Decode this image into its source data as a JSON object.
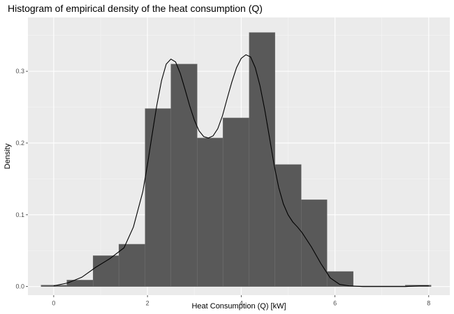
{
  "chart_data": {
    "type": "histogram",
    "title": "Histogram of empirical density of the heat consumption (Q)",
    "xlabel": "Heat Consumption (Q) [kW]",
    "ylabel": "Density",
    "xlim": [
      -0.55,
      8.45
    ],
    "ylim": [
      -0.012,
      0.375
    ],
    "x_ticks": [
      0,
      2,
      4,
      6,
      8
    ],
    "y_ticks": [
      0.0,
      0.1,
      0.2,
      0.3
    ],
    "y_tick_labels": [
      "0.0",
      "0.1",
      "0.2",
      "0.3"
    ],
    "grid": true,
    "bins": [
      {
        "x0": -0.27,
        "x1": 0.28,
        "density": 0.002
      },
      {
        "x0": 0.28,
        "x1": 0.84,
        "density": 0.009
      },
      {
        "x0": 0.84,
        "x1": 1.39,
        "density": 0.043
      },
      {
        "x0": 1.39,
        "x1": 1.95,
        "density": 0.059
      },
      {
        "x0": 1.95,
        "x1": 2.5,
        "density": 0.248
      },
      {
        "x0": 2.5,
        "x1": 3.06,
        "density": 0.31
      },
      {
        "x0": 3.06,
        "x1": 3.61,
        "density": 0.207
      },
      {
        "x0": 3.61,
        "x1": 4.17,
        "density": 0.235
      },
      {
        "x0": 4.17,
        "x1": 4.72,
        "density": 0.354
      },
      {
        "x0": 4.72,
        "x1": 5.28,
        "density": 0.17
      },
      {
        "x0": 5.28,
        "x1": 5.83,
        "density": 0.121
      },
      {
        "x0": 5.83,
        "x1": 6.39,
        "density": 0.021
      },
      {
        "x0": 6.39,
        "x1": 6.94,
        "density": 0.0
      },
      {
        "x0": 6.94,
        "x1": 7.5,
        "density": 0.0
      },
      {
        "x0": 7.5,
        "x1": 8.05,
        "density": 0.002
      }
    ],
    "density_curve": {
      "x": [
        0.0,
        0.3,
        0.6,
        0.9,
        1.2,
        1.5,
        1.7,
        1.9,
        2.0,
        2.1,
        2.2,
        2.3,
        2.4,
        2.5,
        2.6,
        2.7,
        2.8,
        2.9,
        3.0,
        3.1,
        3.2,
        3.3,
        3.4,
        3.5,
        3.6,
        3.7,
        3.8,
        3.9,
        4.0,
        4.1,
        4.2,
        4.3,
        4.4,
        4.5,
        4.6,
        4.7,
        4.8,
        4.9,
        5.0,
        5.1,
        5.2,
        5.3,
        5.5,
        5.7,
        5.9,
        6.1,
        6.3,
        6.6,
        7.0,
        7.5,
        7.8,
        8.0
      ],
      "y": [
        0.001,
        0.005,
        0.013,
        0.027,
        0.039,
        0.054,
        0.083,
        0.132,
        0.17,
        0.212,
        0.253,
        0.287,
        0.31,
        0.317,
        0.313,
        0.297,
        0.275,
        0.252,
        0.232,
        0.217,
        0.209,
        0.207,
        0.21,
        0.22,
        0.238,
        0.262,
        0.285,
        0.305,
        0.318,
        0.323,
        0.32,
        0.305,
        0.28,
        0.247,
        0.209,
        0.17,
        0.138,
        0.115,
        0.1,
        0.09,
        0.083,
        0.075,
        0.055,
        0.032,
        0.012,
        0.003,
        0.001,
        0.0,
        0.0,
        0.0,
        0.001,
        0.001
      ]
    },
    "colors": {
      "panel_background": "#ebebeb",
      "grid_major": "#ffffff",
      "bar_fill": "#595959",
      "bar_outline": "#757575",
      "curve": "#000000"
    }
  }
}
